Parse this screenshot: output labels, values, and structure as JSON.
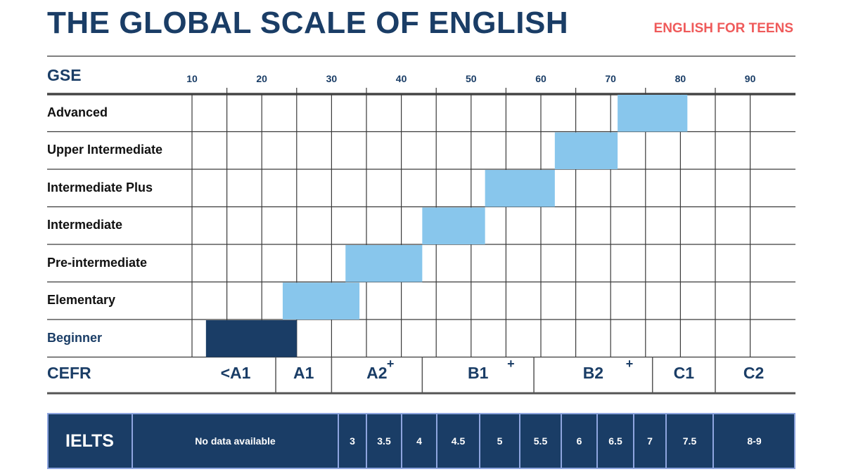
{
  "header": {
    "title": "THE GLOBAL SCALE OF ENGLISH",
    "subtitle": "ENGLISH FOR TEENS"
  },
  "labels": {
    "gse": "GSE",
    "cefr": "CEFR"
  },
  "colors": {
    "navy": "#1a3d66",
    "light_blue": "#88c6ec",
    "accent_red": "#ef5a5a",
    "grid": "#3a3a3a"
  },
  "chart_data": {
    "type": "bar",
    "orientation": "horizontal-range",
    "xlabel": "GSE",
    "xlim": [
      10,
      96
    ],
    "x_ticks": [
      10,
      20,
      30,
      40,
      50,
      60,
      70,
      80,
      90
    ],
    "categories": [
      "Advanced",
      "Upper Intermediate",
      "Intermediate Plus",
      "Intermediate",
      "Pre-intermediate",
      "Elementary",
      "Beginner"
    ],
    "ranges": [
      {
        "label": "Advanced",
        "start": 71,
        "end": 81
      },
      {
        "label": "Upper Intermediate",
        "start": 62,
        "end": 71
      },
      {
        "label": "Intermediate Plus",
        "start": 52,
        "end": 62
      },
      {
        "label": "Intermediate",
        "start": 43,
        "end": 52
      },
      {
        "label": "Pre-intermediate",
        "start": 32,
        "end": 43
      },
      {
        "label": "Elementary",
        "start": 23,
        "end": 34
      },
      {
        "label": "Beginner",
        "start": 12,
        "end": 25
      }
    ],
    "grid": true
  },
  "cefr": [
    {
      "label": "<A1",
      "start": 10,
      "end": 22
    },
    {
      "label": "A1",
      "start": 22,
      "end": 30
    },
    {
      "label": "A2",
      "start": 30,
      "end": 43,
      "plus": true
    },
    {
      "label": "B1",
      "start": 43,
      "end": 59,
      "plus": true
    },
    {
      "label": "B2",
      "start": 59,
      "end": 76,
      "plus": true
    },
    {
      "label": "C1",
      "start": 76,
      "end": 85
    },
    {
      "label": "C2",
      "start": 85,
      "end": 96
    }
  ],
  "ielts": {
    "title": "IELTS",
    "cells": [
      "No data available",
      "3",
      "3.5",
      "4",
      "4.5",
      "5",
      "5.5",
      "6",
      "6.5",
      "7",
      "7.5",
      "8-9"
    ]
  }
}
